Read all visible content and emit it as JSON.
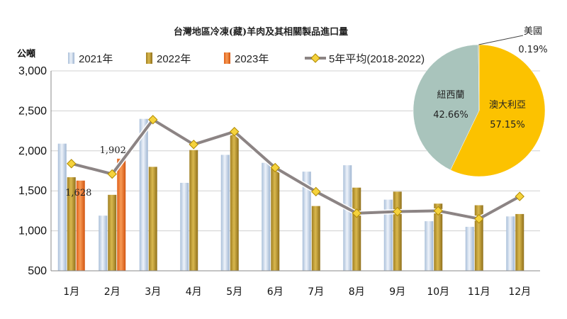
{
  "chart_data": [
    {
      "type": "bar",
      "title": "台灣地區冷凍(藏)羊肉及其相關製品進口量",
      "ylabel": "公噸",
      "ylim": [
        500,
        3000
      ],
      "yticks": [
        "500",
        "1,000",
        "1,500",
        "2,000",
        "2,500",
        "3,000"
      ],
      "ytick_values": [
        500,
        1000,
        1500,
        2000,
        2500,
        3000
      ],
      "categories": [
        "1月",
        "2月",
        "3月",
        "4月",
        "5月",
        "6月",
        "7月",
        "8月",
        "9月",
        "10月",
        "11月",
        "12月"
      ],
      "legend_placement": "top",
      "series": [
        {
          "name": "2021年",
          "kind": "bar",
          "color": "#c9d8ea",
          "values": [
            2090,
            1190,
            2400,
            1600,
            1950,
            1850,
            1740,
            1820,
            1390,
            1120,
            1050,
            1180
          ]
        },
        {
          "name": "2022年",
          "kind": "bar",
          "color": "#c9a53a",
          "values": [
            1670,
            1450,
            1800,
            2010,
            2210,
            1780,
            1310,
            1540,
            1490,
            1340,
            1320,
            1210
          ]
        },
        {
          "name": "2023年",
          "kind": "bar",
          "color": "#f07a2a",
          "values": [
            1628,
            1902,
            null,
            null,
            null,
            null,
            null,
            null,
            null,
            null,
            null,
            null
          ]
        },
        {
          "name": "5年平均(2018-2022)",
          "kind": "line",
          "color": "#8c8484",
          "marker_color": "#f5d23c",
          "values": [
            1840,
            1710,
            2390,
            2080,
            2240,
            1790,
            1490,
            1220,
            1240,
            1250,
            1150,
            1430
          ]
        }
      ],
      "data_labels": [
        {
          "series": "2023年",
          "category": "1月",
          "text": "1,628"
        },
        {
          "series": "2023年",
          "category": "2月",
          "text": "1,902"
        }
      ]
    },
    {
      "type": "pie",
      "slices": [
        {
          "label": "澳大利亞",
          "value": 57.15,
          "text": "57.15%",
          "color": "#fcc200"
        },
        {
          "label": "紐西蘭",
          "value": 42.66,
          "text": "42.66%",
          "color": "#a9c4bc"
        },
        {
          "label": "美國",
          "value": 0.19,
          "text": "0.19%",
          "color": "#c4a84a"
        }
      ]
    }
  ]
}
